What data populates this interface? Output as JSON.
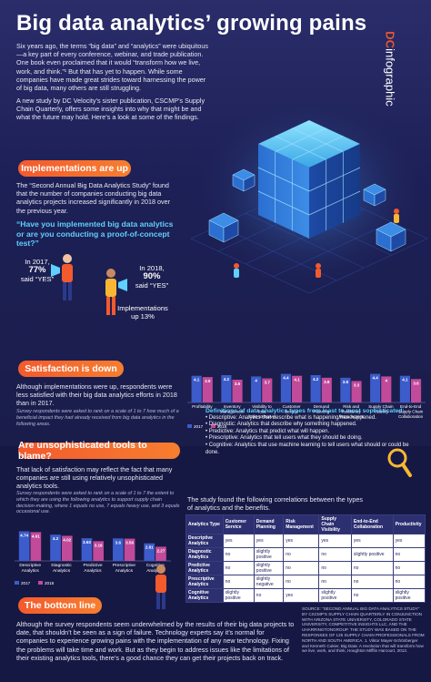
{
  "title": "Big data analytics’ growing pains",
  "brand": {
    "dc": "DC",
    "word": "infographic"
  },
  "intro_p1": "Six years ago, the terms “big data” and “analytics” were ubiquitous—a key part of every conference, webinar, and trade publication. One book even proclaimed that it would “transform how we live, work, and think.”¹ But that has yet to happen. While some companies have made great strides toward harnessing the power of big data, many others are still struggling.",
  "intro_p2": "A new study by DC Velocity’s sister publication, CSCMP’s Supply Chain Quarterly, offers some insights into why that might be and what the future may hold. Here’s a look at some of the findings.",
  "sections": {
    "implementations": "Implementations are up",
    "satisfaction": "Satisfaction is down",
    "unsophisticated": "Are unsophisticated tools to blame?",
    "bottom_line": "The bottom line"
  },
  "impl_text": "The “Second Annual Big Data Analytics Study” found that the number of companies conducting big data analytics projects increased significantly in 2018 over the previous year.",
  "impl_question": "“Have you implemented big data analytics or are you conducting a proof-of-concept test?”",
  "stat_2017": {
    "year": "In 2017,",
    "pct": "77%",
    "said": "said “YES”"
  },
  "stat_2018": {
    "year": "In 2018,",
    "pct": "90%",
    "said": "said “YES”"
  },
  "stat_up": "Implementations up 13%",
  "satisfaction_text": "Although implementations were up, respondents were less satisfied with their big data analytics efforts in 2018 than in 2017.",
  "satisfaction_note": "Survey respondents were asked to rank on a scale of 1 to 7 how much of a beneficial impact they had already received from big data analytics in the following areas.",
  "unsoph_text": "That lack of satisfaction may reflect the fact that many companies are still using relatively unsophisticated analytics tools.",
  "unsoph_note": "Survey respondents were asked to rank on a scale of 1 to 7 the extent to which they are using the following analytics to support supply chain decision-making, where 1 equals no use, 7 equals heavy use, and 3 equals occasional use.",
  "definitions": {
    "header": "Definitions of data analytics types from least to most sophisticated:",
    "items": [
      "• Descriptive: Analytics that describe what is happening/has happened.",
      "• Diagnostic: Analytics that describe why something happened.",
      "• Predictive: Analytics that predict what will happen.",
      "• Prescriptive: Analytics that tell users what they should be doing.",
      "• Cognitive: Analytics that use machine learning to tell users what should or could be done."
    ]
  },
  "correlation_text": "The study found the following correlations between the types of analytics and the benefits.",
  "table": {
    "headers": [
      "Analytics Type",
      "Customer Service",
      "Demand Planning",
      "Risk Management",
      "Supply Chain Visibility",
      "End-to-End Collaboration",
      "Productivity"
    ],
    "rows": [
      [
        "Descriptive Analytics",
        "yes",
        "yes",
        "yes",
        "yes",
        "yes",
        "yes"
      ],
      [
        "Diagnostic Analytics",
        "no",
        "slightly positive",
        "no",
        "no",
        "slightly positive",
        "no"
      ],
      [
        "Predictive Analytics",
        "no",
        "slightly positive",
        "no",
        "no",
        "no",
        "no"
      ],
      [
        "Prescriptive Analytics",
        "no",
        "slightly negative",
        "no",
        "no",
        "no",
        "no"
      ],
      [
        "Cognitive Analytics",
        "slightly positive",
        "no",
        "yes",
        "slightly positive",
        "no",
        "slightly positive"
      ]
    ]
  },
  "bottom_text": "Although the survey respondents seem underwhelmed by the results of their big data projects to date, that shouldn’t be seen as a sign of failure. Technology experts say it’s normal for companies to experience growing pains with the implementation of any new technology. Fixing the problems will take time and work. But as they begin to address issues like the limitations of their existing analytics tools, there’s a good chance they can get their projects back on track.",
  "source": "SOURCE: “SECOND ANNUAL BIG DATA ANALYTICS STUDY” BY CSCMP’S SUPPLY CHAIN QUARTERLY IN CONJUNCTION WITH ARIZONA STATE UNIVERSITY, COLORADO STATE UNIVERSITY, COMPETITIVE INSIGHTS LLC, AND THE UHARRINGTONGROUP. THE STUDY WAS BASED ON THE RESPONSES OF 125 SUPPLY CHAIN PROFESSIONALS FROM NORTH AND SOUTH AMERICA. 1. Viktor Mayer-Schönberger and Kenneth Cukier, Big Data: A revolution that will transform how we live, work, and think, Houghton Mifflin Harcourt, 2013.",
  "colors": {
    "c2017": "#3c5ccb",
    "c2018": "#c24a9a",
    "accent": "#f35a2d",
    "cyan": "#5fd0ff"
  },
  "chart_data": [
    {
      "type": "bar",
      "categories": [
        "Profitability",
        "Inventory Management",
        "Visibility to Total Cost-to-Serve",
        "Customer Service",
        "Demand Planning",
        "Risk and Resiliency Management",
        "Supply Chain Visibility",
        "End-to-End Supply Chain Collaboration"
      ],
      "series": [
        {
          "name": "2017",
          "values": [
            4.1,
            4.2,
            4.0,
            4.4,
            4.2,
            3.8,
            4.4,
            4.1
          ]
        },
        {
          "name": "2018",
          "values": [
            3.9,
            3.5,
            3.7,
            4.1,
            3.8,
            3.3,
            4.0,
            3.6
          ]
        }
      ],
      "ylim": [
        0,
        7
      ]
    },
    {
      "type": "bar",
      "categories": [
        "Descriptive Analytics",
        "Diagnostic Analytics",
        "Predictive Analytics",
        "Prescriptive Analytics",
        "Cognitive Analytics"
      ],
      "series": [
        {
          "name": "2017",
          "values": [
            4.74,
            4.2,
            3.63,
            3.6,
            2.81
          ]
        },
        {
          "name": "2018",
          "values": [
            4.61,
            4.02,
            3.16,
            3.56,
            2.27
          ]
        }
      ],
      "ylim": [
        0,
        7
      ]
    }
  ]
}
